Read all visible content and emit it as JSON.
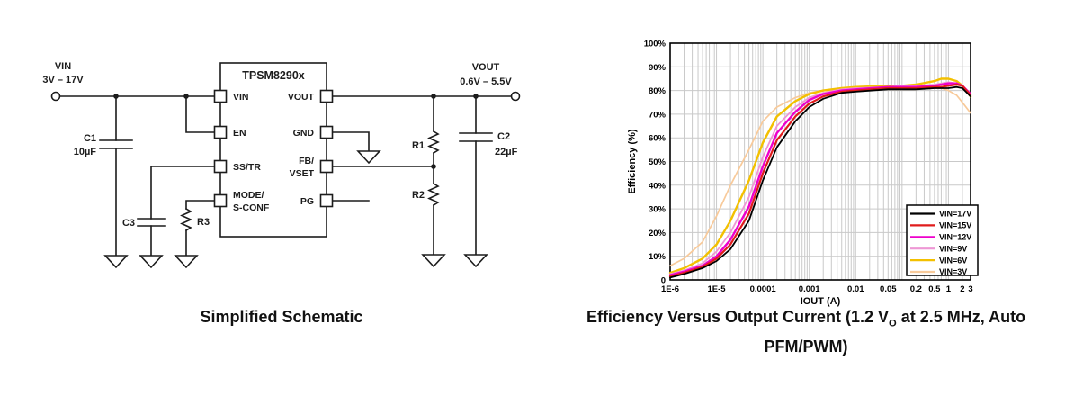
{
  "schematic": {
    "caption": "Simplified Schematic",
    "ic_title": "TPSM8290x",
    "vin_label": "VIN",
    "vin_range": "3V – 17V",
    "vout_label": "VOUT",
    "vout_range": "0.6V – 5.5V",
    "pin_vin": "VIN",
    "pin_en": "EN",
    "pin_sstr": "SS/TR",
    "pin_mode1": "MODE/",
    "pin_mode2": "S-CONF",
    "pin_vout": "VOUT",
    "pin_gnd": "GND",
    "pin_fb1": "FB/",
    "pin_fb2": "VSET",
    "pin_pg": "PG",
    "c1": "C1",
    "c1_value": "10µF",
    "c2": "C2",
    "c2_value": "22µF",
    "c3": "C3",
    "r1": "R1",
    "r2": "R2",
    "r3": "R3"
  },
  "chart": {
    "caption_pre": "Efficiency Versus Output Current (1.2 V",
    "caption_sub": "O",
    "caption_post": " at 2.5 MHz, Auto PFM/PWM)"
  },
  "chart_data": {
    "type": "line",
    "title": "Efficiency Versus Output Current (1.2 VO at 2.5 MHz, Auto PFM/PWM)",
    "xlabel": "IOUT (A)",
    "ylabel": "Efficiency (%)",
    "x_scale": "log",
    "xlim": [
      1e-06,
      3
    ],
    "ylim": [
      0,
      100
    ],
    "grid": true,
    "grid_color": "#c9c9c9",
    "legend_position": "lower right",
    "x_ticks": [
      {
        "v": 1e-06,
        "label": "1E-6"
      },
      {
        "v": 1e-05,
        "label": "1E-5"
      },
      {
        "v": 0.0001,
        "label": "0.0001"
      },
      {
        "v": 0.001,
        "label": "0.001"
      },
      {
        "v": 0.01,
        "label": "0.01"
      },
      {
        "v": 0.05,
        "label": "0.05"
      },
      {
        "v": 0.2,
        "label": "0.2"
      },
      {
        "v": 0.5,
        "label": "0.5"
      },
      {
        "v": 1,
        "label": "1"
      },
      {
        "v": 2,
        "label": "2"
      },
      {
        "v": 3,
        "label": "3"
      }
    ],
    "y_ticks": [
      {
        "v": 0,
        "label": "0"
      },
      {
        "v": 10,
        "label": "10%"
      },
      {
        "v": 20,
        "label": "20%"
      },
      {
        "v": 30,
        "label": "30%"
      },
      {
        "v": 40,
        "label": "40%"
      },
      {
        "v": 50,
        "label": "50%"
      },
      {
        "v": 60,
        "label": "60%"
      },
      {
        "v": 70,
        "label": "70%"
      },
      {
        "v": 80,
        "label": "80%"
      },
      {
        "v": 90,
        "label": "90%"
      },
      {
        "v": 100,
        "label": "100%"
      }
    ],
    "x": [
      1e-06,
      2e-06,
      5e-06,
      1e-05,
      2e-05,
      5e-05,
      0.0001,
      0.0002,
      0.0005,
      0.001,
      0.002,
      0.005,
      0.01,
      0.05,
      0.1,
      0.2,
      0.5,
      0.7,
      1,
      1.5,
      2,
      3
    ],
    "series": [
      {
        "name": "VIN=17V",
        "color": "#000000",
        "lw": 1.8,
        "values": [
          1,
          2.5,
          5,
          8,
          13,
          25,
          42,
          56,
          67,
          73,
          76.5,
          79,
          79.5,
          80.5,
          80.5,
          80.5,
          81,
          81,
          81,
          81.5,
          81,
          77.5
        ]
      },
      {
        "name": "VIN=15V",
        "color": "#e01c1c",
        "lw": 2.2,
        "values": [
          1.5,
          3,
          5.5,
          9,
          15,
          28,
          45,
          59,
          69,
          74.5,
          77.5,
          79.5,
          80,
          81,
          81,
          81,
          81.5,
          81.5,
          82,
          82.5,
          82,
          78
        ]
      },
      {
        "name": "VIN=12V",
        "color": "#ee00cc",
        "lw": 2.4,
        "values": [
          2,
          3.5,
          6,
          10,
          17,
          31,
          48,
          62,
          71,
          76,
          78.5,
          80,
          80.5,
          81.5,
          81.5,
          81.5,
          82,
          82.5,
          83,
          83,
          82,
          78.5
        ]
      },
      {
        "name": "VIN=9V",
        "color": "#ee97d5",
        "lw": 1.8,
        "values": [
          2.5,
          4,
          7,
          12,
          20,
          35,
          52,
          65,
          73,
          77,
          79,
          80.5,
          81,
          81.5,
          82,
          82,
          82.5,
          83,
          83.5,
          83,
          82,
          78.5
        ]
      },
      {
        "name": "VIN=6V",
        "color": "#f3c000",
        "lw": 2.4,
        "values": [
          3,
          5,
          9,
          15,
          25,
          42,
          58,
          69,
          75.5,
          78.5,
          80,
          81,
          81.5,
          82,
          82,
          82.5,
          84,
          85,
          85,
          84,
          82,
          77.5
        ]
      },
      {
        "name": "VIN=3V",
        "color": "#f8ca9a",
        "lw": 1.7,
        "values": [
          6,
          9,
          16,
          27,
          40,
          55,
          67,
          73,
          77,
          79,
          80,
          80.5,
          80.5,
          80.5,
          80.5,
          80.5,
          81,
          81,
          80,
          78,
          75,
          70.5
        ]
      }
    ]
  }
}
